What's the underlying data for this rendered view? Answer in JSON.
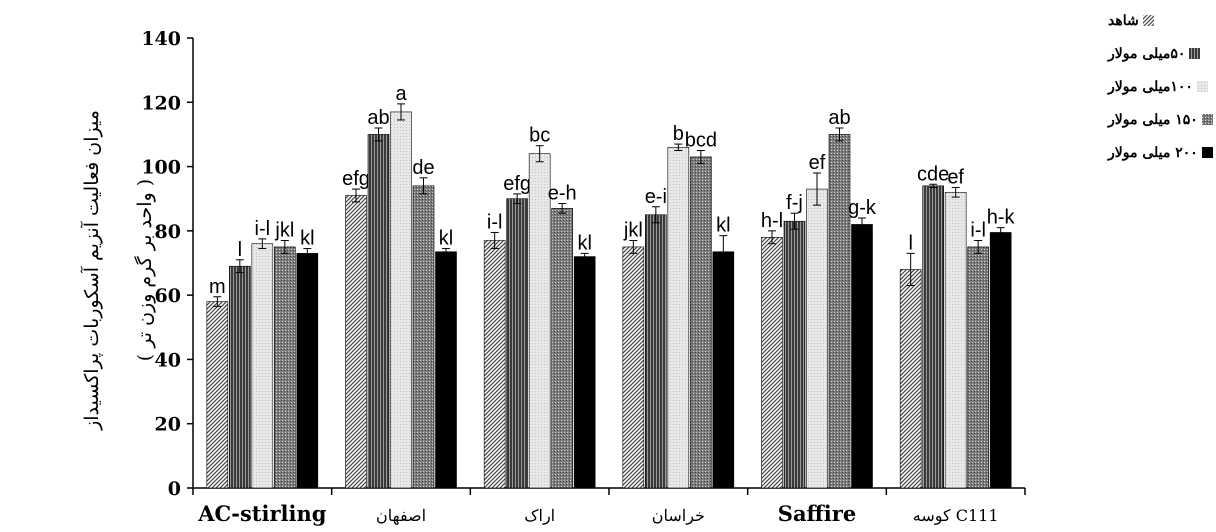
{
  "chart_data": {
    "type": "bar",
    "title": "",
    "ylabel_lines": [
      "میزان فعالیت آنزیم آسکوربات پراکسیداز",
      "( واحد بر گرم وزن تر )"
    ],
    "xlabel": "",
    "ylim": [
      0,
      140
    ],
    "yticks": [
      "0",
      "20",
      "40",
      "60",
      "80",
      "100",
      "120",
      "140"
    ],
    "categories": [
      "AC-stirling",
      "اصفهان",
      "اراک",
      "خراسان",
      "Saffire",
      "کوسه C111"
    ],
    "legend_position": "right",
    "grid": false,
    "series": [
      {
        "name": "شاهد",
        "pattern": "diagonal-hatch",
        "values": [
          58,
          91,
          77,
          75,
          78,
          68
        ],
        "errors": [
          1.5,
          2,
          2.5,
          2,
          2,
          5
        ],
        "letters": [
          "m",
          "efg",
          "i-l",
          "jkl",
          "h-l",
          "l"
        ]
      },
      {
        "name": "۵۰میلی مولار",
        "pattern": "vertical-stripes",
        "values": [
          69,
          110,
          90,
          85,
          83,
          94
        ],
        "errors": [
          2,
          2,
          1.5,
          2.5,
          2.5,
          0.5
        ],
        "letters": [
          "l",
          "ab",
          "efg",
          "e-i",
          "f-j",
          "cde"
        ]
      },
      {
        "name": "۱۰۰میلی مولار",
        "pattern": "light-dots",
        "values": [
          76,
          117,
          104,
          106,
          93,
          92
        ],
        "errors": [
          1.5,
          2.5,
          2.5,
          1,
          5,
          1.5
        ],
        "letters": [
          "i-l",
          "a",
          "bc",
          "b",
          "ef",
          "ef"
        ]
      },
      {
        "name": "۱۵۰ میلی مولار",
        "pattern": "dark-dots",
        "values": [
          75,
          94,
          87,
          103,
          110,
          75
        ],
        "errors": [
          2,
          2.5,
          1.5,
          2,
          2,
          2
        ],
        "letters": [
          "jkl",
          "de",
          "e-h",
          "bcd",
          "ab",
          "i-l"
        ]
      },
      {
        "name": "۲۰۰ میلی مولار",
        "pattern": "solid-black",
        "values": [
          73,
          73.5,
          72,
          73.5,
          82,
          79.5
        ],
        "errors": [
          1.5,
          1,
          1,
          5,
          2,
          1.5
        ],
        "letters": [
          "kl",
          "kl",
          "kl",
          "kl",
          "g-k",
          "h-k"
        ]
      }
    ]
  }
}
